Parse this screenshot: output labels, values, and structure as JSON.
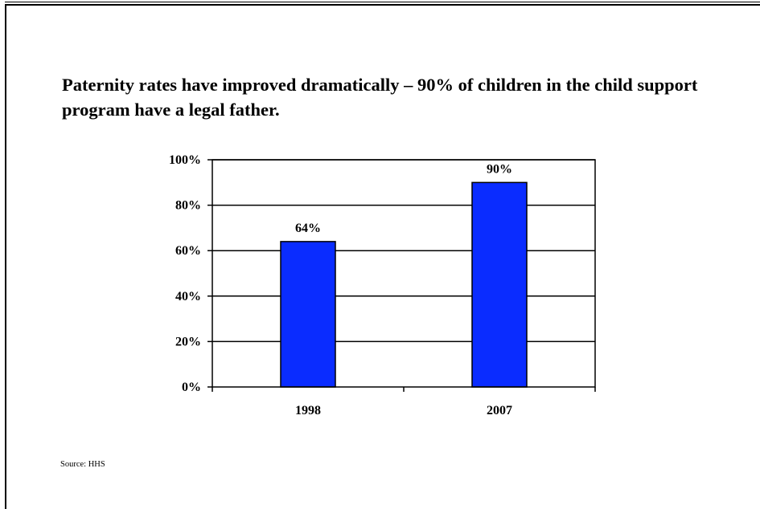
{
  "title": "Paternity rates have improved dramatically – 90% of children in the child support program have a legal father.",
  "source": "Source: HHS",
  "colors": {
    "bar": "#0a2cff",
    "bar_stroke": "#000000",
    "axis": "#000000",
    "grid": "#000000"
  },
  "chart_data": {
    "type": "bar",
    "title": "Paternity rates have improved dramatically – 90% of children in the child support program have a legal father.",
    "xlabel": "",
    "ylabel": "",
    "categories": [
      "1998",
      "2007"
    ],
    "values": [
      64,
      90
    ],
    "data_labels": [
      "64%",
      "90%"
    ],
    "ylim": [
      0,
      100
    ],
    "yticks": [
      0,
      20,
      40,
      60,
      80,
      100
    ],
    "ytick_labels": [
      "0%",
      "20%",
      "40%",
      "60%",
      "80%",
      "100%"
    ],
    "grid": true,
    "legend": "none"
  }
}
